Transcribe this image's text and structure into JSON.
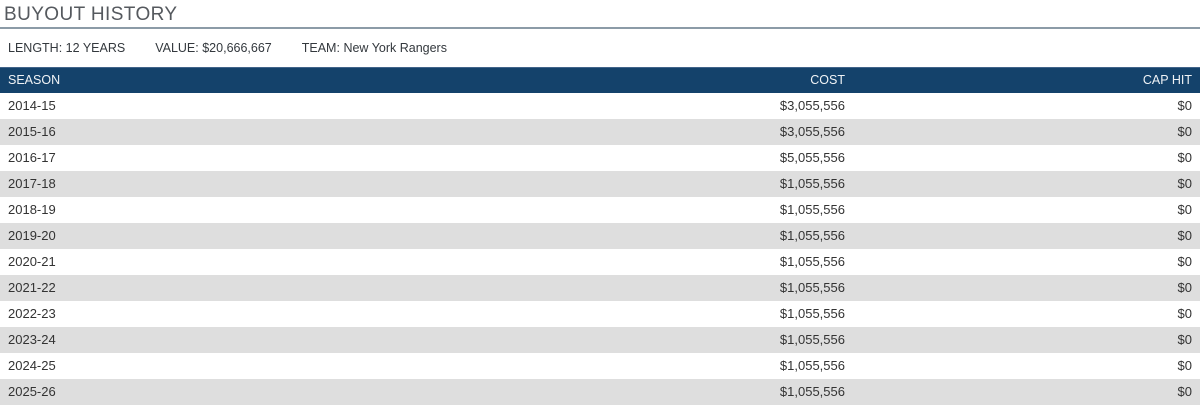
{
  "page": {
    "title": "BUYOUT HISTORY"
  },
  "summary": {
    "length": {
      "label": "LENGTH:",
      "value": "12 YEARS"
    },
    "value": {
      "label": "VALUE:",
      "value": "$20,666,667"
    },
    "team": {
      "label": "TEAM:",
      "value": "New York Rangers"
    }
  },
  "table": {
    "columns": [
      {
        "label": "SEASON",
        "align": "left"
      },
      {
        "label": "COST",
        "align": "right"
      },
      {
        "label": "CAP HIT",
        "align": "right"
      }
    ],
    "rows": [
      {
        "season": "2014-15",
        "cost": "$3,055,556",
        "cap_hit": "$0"
      },
      {
        "season": "2015-16",
        "cost": "$3,055,556",
        "cap_hit": "$0"
      },
      {
        "season": "2016-17",
        "cost": "$5,055,556",
        "cap_hit": "$0"
      },
      {
        "season": "2017-18",
        "cost": "$1,055,556",
        "cap_hit": "$0"
      },
      {
        "season": "2018-19",
        "cost": "$1,055,556",
        "cap_hit": "$0"
      },
      {
        "season": "2019-20",
        "cost": "$1,055,556",
        "cap_hit": "$0"
      },
      {
        "season": "2020-21",
        "cost": "$1,055,556",
        "cap_hit": "$0"
      },
      {
        "season": "2021-22",
        "cost": "$1,055,556",
        "cap_hit": "$0"
      },
      {
        "season": "2022-23",
        "cost": "$1,055,556",
        "cap_hit": "$0"
      },
      {
        "season": "2023-24",
        "cost": "$1,055,556",
        "cap_hit": "$0"
      },
      {
        "season": "2024-25",
        "cost": "$1,055,556",
        "cap_hit": "$0"
      },
      {
        "season": "2025-26",
        "cost": "$1,055,556",
        "cap_hit": "$0"
      }
    ]
  },
  "colors": {
    "header_bg": "#14426b",
    "header_text": "#f0f3f6",
    "row_alt_bg": "#dedede",
    "title_text": "#55595e",
    "title_rule": "#8c9ba7"
  }
}
